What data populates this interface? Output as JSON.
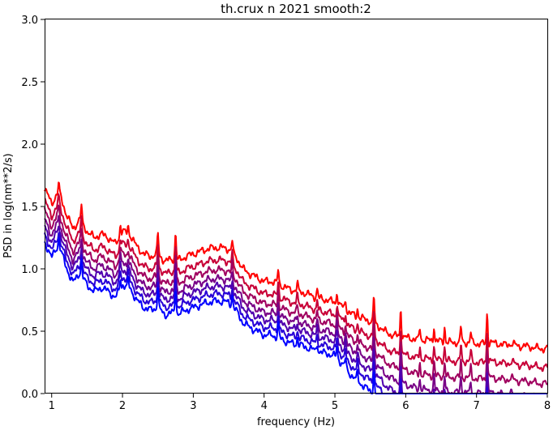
{
  "chart_data": {
    "type": "line",
    "title": "th.crux n 2021 smooth:2",
    "xlabel": "frequency (Hz)",
    "ylabel": "PSD in log(nm**2/s)",
    "xlim": [
      0.9,
      8.0
    ],
    "ylim": [
      0.0,
      3.0
    ],
    "xticks": [
      1,
      2,
      3,
      4,
      5,
      6,
      7,
      8
    ],
    "yticks": [
      0.0,
      0.5,
      1.0,
      1.5,
      2.0,
      2.5,
      3.0
    ],
    "grid": false,
    "legend": "none",
    "base_curve": {
      "x": [
        0.9,
        1.0,
        1.1,
        1.2,
        1.3,
        1.4,
        1.5,
        1.6,
        1.7,
        1.8,
        1.9,
        2.0,
        2.1,
        2.2,
        2.3,
        2.4,
        2.5,
        2.6,
        2.7,
        2.8,
        2.9,
        3.0,
        3.1,
        3.2,
        3.3,
        3.4,
        3.5,
        3.6,
        3.7,
        3.8,
        3.9,
        4.0,
        4.1,
        4.2,
        4.3,
        4.4,
        4.5,
        4.6,
        4.7,
        4.8,
        4.9,
        5.0,
        5.1,
        5.2,
        5.3,
        5.4,
        5.5,
        5.6,
        5.7,
        5.8,
        5.9,
        6.0,
        6.1,
        6.2,
        6.3,
        6.4,
        6.5,
        6.6,
        6.7,
        6.8,
        6.9,
        7.0,
        7.1,
        7.2,
        7.3,
        7.4,
        7.5,
        7.6,
        7.7,
        7.8,
        7.9,
        8.0
      ],
      "y": [
        1.65,
        1.52,
        1.63,
        1.45,
        1.32,
        1.4,
        1.3,
        1.25,
        1.28,
        1.25,
        1.2,
        1.3,
        1.28,
        1.18,
        1.12,
        1.1,
        1.12,
        1.06,
        1.08,
        1.07,
        1.1,
        1.12,
        1.14,
        1.16,
        1.17,
        1.17,
        1.16,
        1.1,
        1.0,
        0.96,
        0.93,
        0.9,
        0.9,
        0.88,
        0.85,
        0.83,
        0.82,
        0.8,
        0.78,
        0.76,
        0.75,
        0.73,
        0.7,
        0.65,
        0.62,
        0.6,
        0.58,
        0.55,
        0.5,
        0.47,
        0.46,
        0.45,
        0.44,
        0.43,
        0.43,
        0.42,
        0.42,
        0.41,
        0.41,
        0.41,
        0.41,
        0.4,
        0.4,
        0.41,
        0.4,
        0.39,
        0.4,
        0.38,
        0.38,
        0.37,
        0.36,
        0.36
      ]
    },
    "peaks": [
      {
        "x": 1.1,
        "dy": 0.05
      },
      {
        "x": 1.42,
        "dy": 0.12
      },
      {
        "x": 1.97,
        "dy": 0.08
      },
      {
        "x": 2.08,
        "dy": 0.06
      },
      {
        "x": 2.5,
        "dy": 0.17
      },
      {
        "x": 2.75,
        "dy": 0.22
      },
      {
        "x": 3.55,
        "dy": 0.1
      },
      {
        "x": 4.2,
        "dy": 0.12
      },
      {
        "x": 4.47,
        "dy": 0.06
      },
      {
        "x": 4.75,
        "dy": 0.07
      },
      {
        "x": 5.03,
        "dy": 0.1
      },
      {
        "x": 5.15,
        "dy": 0.08
      },
      {
        "x": 5.32,
        "dy": 0.07
      },
      {
        "x": 5.55,
        "dy": 0.22
      },
      {
        "x": 5.93,
        "dy": 0.23
      },
      {
        "x": 6.2,
        "dy": 0.1
      },
      {
        "x": 6.4,
        "dy": 0.12
      },
      {
        "x": 6.55,
        "dy": 0.12
      },
      {
        "x": 6.78,
        "dy": 0.13
      },
      {
        "x": 6.92,
        "dy": 0.08
      },
      {
        "x": 7.15,
        "dy": 0.25
      }
    ],
    "series": [
      {
        "color": "#ff0000",
        "y_offset": 0.0,
        "low_drop": 0.0
      },
      {
        "color": "#c80037",
        "y_offset": -0.1,
        "low_drop": 0.05
      },
      {
        "color": "#a0005f",
        "y_offset": -0.18,
        "low_drop": 0.1
      },
      {
        "color": "#780087",
        "y_offset": -0.25,
        "low_drop": 0.15
      },
      {
        "color": "#5000af",
        "y_offset": -0.31,
        "low_drop": 0.2
      },
      {
        "color": "#2800d7",
        "y_offset": -0.37,
        "low_drop": 0.25
      },
      {
        "color": "#0000ff",
        "y_offset": -0.43,
        "low_drop": 0.32
      }
    ]
  }
}
